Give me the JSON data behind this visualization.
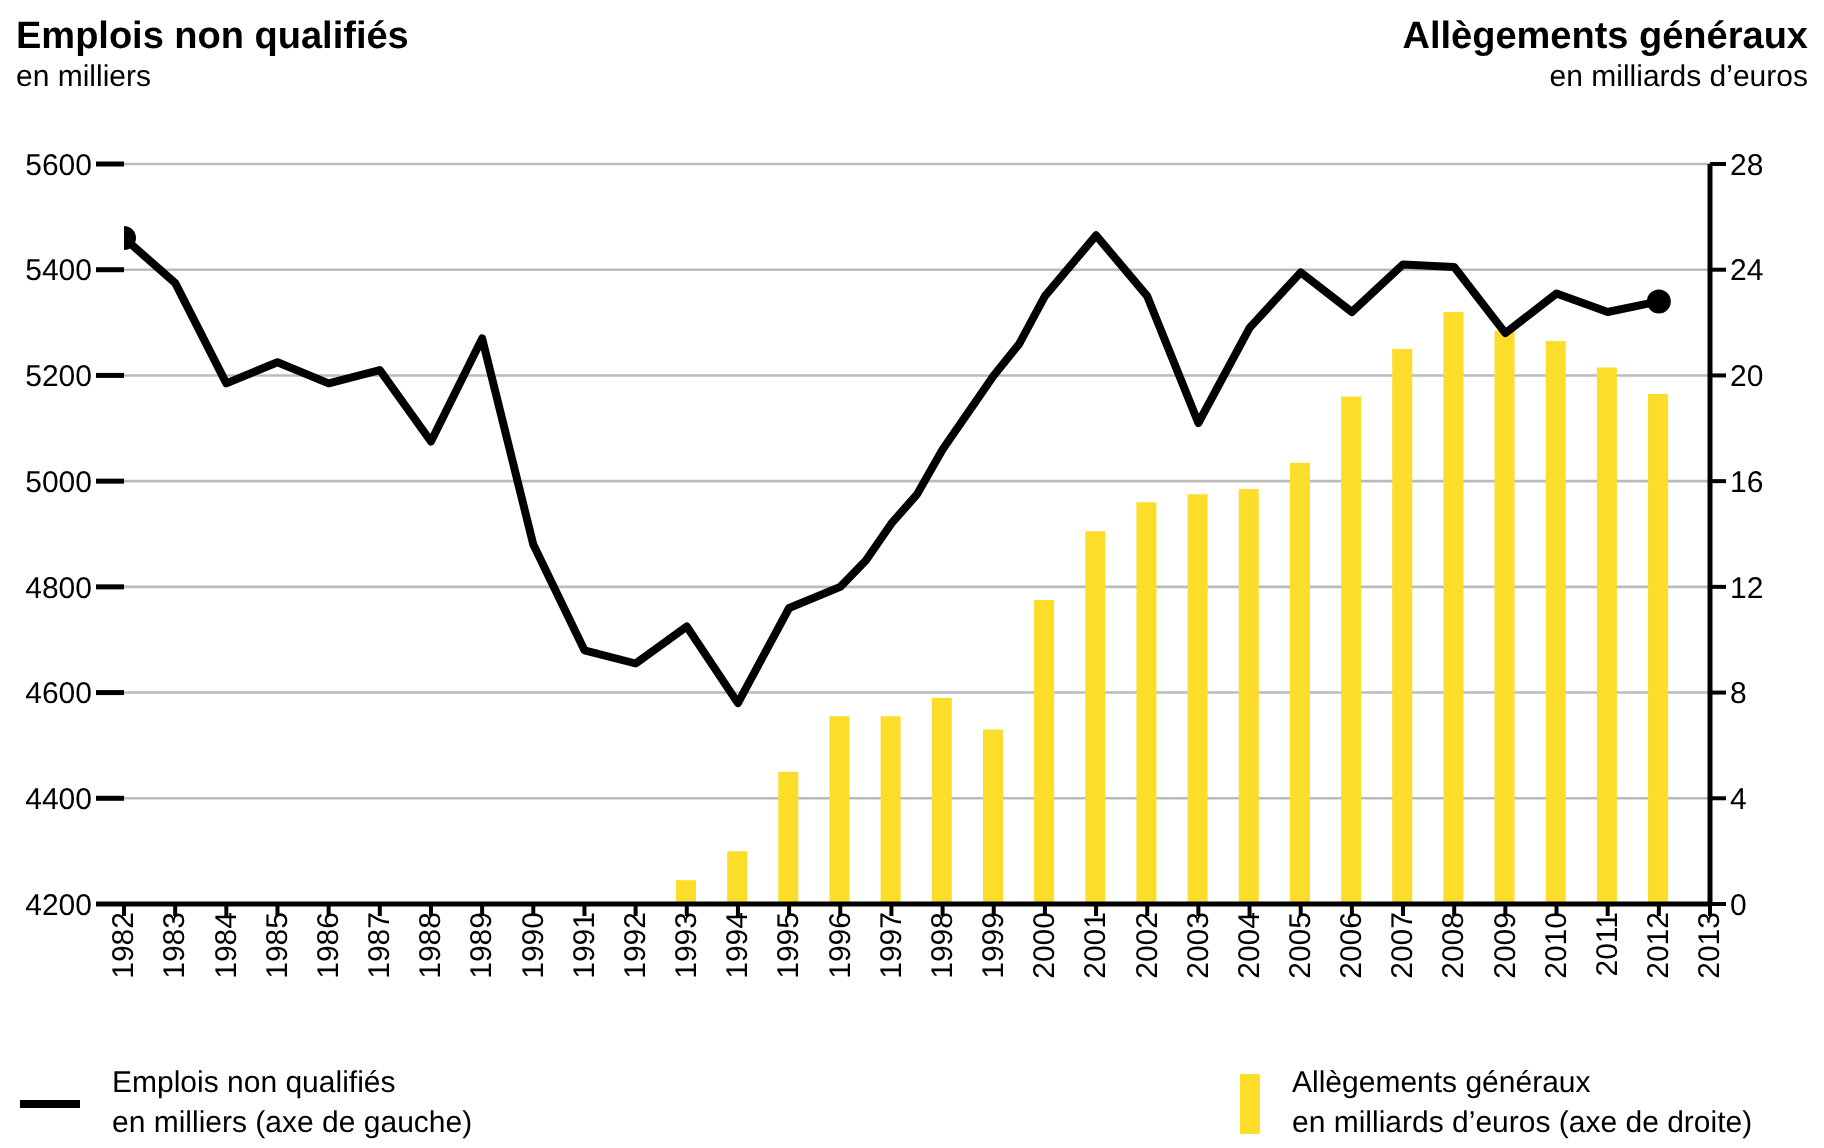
{
  "chart_data": {
    "type": "bar",
    "ylabel": "Emplois non qualifiés",
    "y2label": "Allègements généraux",
    "annotations": [
      "en milliers",
      "en milliards d’euros"
    ],
    "xlim": [
      1982,
      2013
    ],
    "xticks": [
      1982,
      1983,
      1984,
      1985,
      1986,
      1987,
      1988,
      1989,
      1990,
      1991,
      1992,
      1993,
      1994,
      1995,
      1996,
      1997,
      1998,
      1999,
      2000,
      2001,
      2002,
      2003,
      2004,
      2005,
      2006,
      2007,
      2008,
      2009,
      2010,
      2011,
      2012,
      2013
    ],
    "ylim": [
      4200,
      5600
    ],
    "yticks": [
      4200,
      4400,
      4600,
      4800,
      5000,
      5200,
      5400,
      5600
    ],
    "y2lim": [
      0,
      28
    ],
    "y2ticks": [
      0,
      4,
      8,
      12,
      16,
      20,
      24,
      28
    ],
    "grid": "y",
    "legend": "bottom",
    "series": [
      {
        "name": "Emplois non qualifiés\nen milliers (axe de gauche)",
        "type": "line",
        "color": "#000000",
        "x": [
          1982,
          1983,
          1984,
          1985,
          1986,
          1987,
          1988,
          1989,
          1990,
          1991,
          1992,
          1993,
          1994,
          1995,
          1996,
          1996.5,
          1997,
          1997.5,
          1998,
          1999,
          1999.5,
          2000,
          2001,
          2002,
          2003,
          2004,
          2005,
          2006,
          2007,
          2008,
          2009,
          2010,
          2011,
          2012
        ],
        "values": [
          5460,
          5375,
          5185,
          5225,
          5185,
          5210,
          5075,
          5270,
          4880,
          4680,
          4655,
          4725,
          4580,
          4760,
          4800,
          4850,
          4920,
          4975,
          5060,
          5200,
          5260,
          5350,
          5465,
          5350,
          5110,
          5290,
          5395,
          5320,
          5410,
          5405,
          5280,
          5355,
          5320,
          5340
        ]
      },
      {
        "name": "Allègements généraux\nen milliards d’euros (axe de droite)",
        "type": "bar",
        "axis": "y2",
        "color": "#fbdd2a",
        "x": [
          1993,
          1994,
          1995,
          1996,
          1997,
          1998,
          1999,
          2000,
          2001,
          2002,
          2003,
          2004,
          2005,
          2006,
          2007,
          2008,
          2009,
          2010,
          2011,
          2012
        ],
        "values": [
          0.9,
          2.0,
          5.0,
          7.1,
          7.1,
          7.8,
          6.6,
          11.5,
          14.1,
          15.2,
          15.5,
          15.7,
          16.7,
          19.2,
          21.0,
          22.4,
          21.7,
          21.3,
          20.3,
          19.3
        ]
      }
    ]
  }
}
